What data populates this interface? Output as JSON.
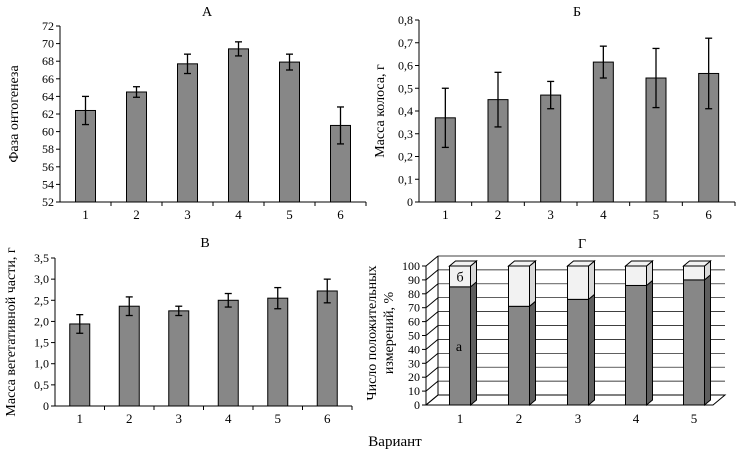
{
  "x_axis_caption": "Вариант",
  "colors": {
    "bar": "#878787",
    "bar_light": "#f2f2f2",
    "bar_side": "#5e5e5e",
    "bar_top": "#b0b0b0",
    "axis": "#000000"
  },
  "chart_data": [
    {
      "id": "A",
      "type": "bar",
      "title": "А",
      "xlabel": "",
      "ylabel": "Фаза онтогенеза",
      "categories": [
        "1",
        "2",
        "3",
        "4",
        "5",
        "6"
      ],
      "values": [
        62.4,
        64.5,
        67.7,
        69.4,
        67.9,
        60.7
      ],
      "errors": [
        1.6,
        0.6,
        1.1,
        0.8,
        0.9,
        2.1
      ],
      "ylim": [
        52,
        72
      ],
      "yticks": [
        52,
        54,
        56,
        58,
        60,
        62,
        64,
        66,
        68,
        70,
        72
      ],
      "ytick_labels": [
        "52",
        "54",
        "56",
        "58",
        "60",
        "62",
        "64",
        "66",
        "68",
        "70",
        "72"
      ]
    },
    {
      "id": "B",
      "type": "bar",
      "title": "Б",
      "xlabel": "",
      "ylabel": "Масса колоса, г",
      "categories": [
        "1",
        "2",
        "3",
        "4",
        "5",
        "6"
      ],
      "values": [
        0.37,
        0.45,
        0.47,
        0.615,
        0.545,
        0.565
      ],
      "errors": [
        0.13,
        0.12,
        0.06,
        0.07,
        0.13,
        0.155
      ],
      "ylim": [
        0,
        0.8
      ],
      "yticks": [
        0,
        0.1,
        0.2,
        0.3,
        0.4,
        0.5,
        0.6,
        0.7,
        0.8
      ],
      "ytick_labels": [
        "0",
        "0,1",
        "0,2",
        "0,3",
        "0,4",
        "0,5",
        "0,6",
        "0,7",
        "0,8"
      ]
    },
    {
      "id": "C",
      "type": "bar",
      "title": "В",
      "xlabel": "",
      "ylabel": "Масса вегетативной части, г",
      "categories": [
        "1",
        "2",
        "3",
        "4",
        "5",
        "6"
      ],
      "values": [
        1.94,
        2.36,
        2.25,
        2.5,
        2.55,
        2.72
      ],
      "errors": [
        0.22,
        0.22,
        0.11,
        0.16,
        0.25,
        0.28
      ],
      "ylim": [
        0,
        3.5
      ],
      "yticks": [
        0,
        0.5,
        1,
        1.5,
        2,
        2.5,
        3,
        3.5
      ],
      "ytick_labels": [
        "0",
        "0,5",
        "1,0",
        "1,5",
        "2,0",
        "2,5",
        "3,0",
        "3,5"
      ]
    },
    {
      "id": "D",
      "type": "bar",
      "stacked": true,
      "three_d": true,
      "title": "Г",
      "xlabel": "",
      "ylabel": "Число положительных измерений, %",
      "categories": [
        "1",
        "2",
        "3",
        "4",
        "5"
      ],
      "series": [
        {
          "name": "а",
          "values": [
            85,
            71,
            76,
            86,
            90
          ]
        },
        {
          "name": "б",
          "values": [
            15,
            29,
            24,
            14,
            10
          ]
        }
      ],
      "ylim": [
        0,
        100
      ],
      "yticks": [
        0,
        10,
        20,
        30,
        40,
        50,
        60,
        70,
        80,
        90,
        100
      ],
      "ytick_labels": [
        "0",
        "10",
        "20",
        "30",
        "40",
        "50",
        "60",
        "70",
        "80",
        "90",
        "100"
      ]
    }
  ]
}
